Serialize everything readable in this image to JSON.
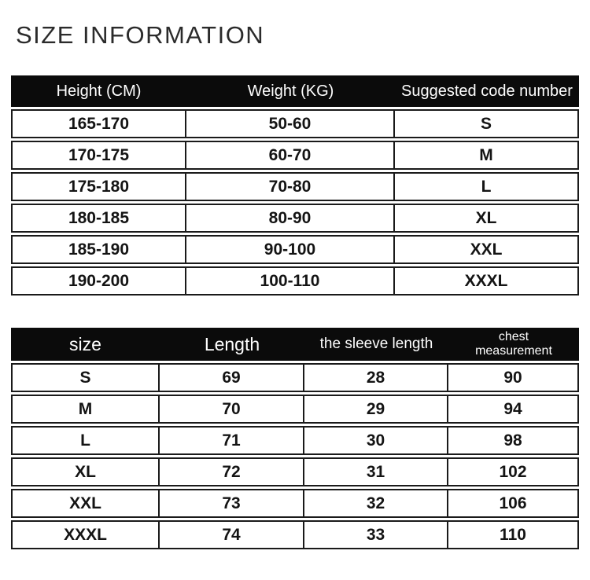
{
  "page_title": "SIZE INFORMATION",
  "colors": {
    "background": "#ffffff",
    "table_header_bg": "#0b0b0b",
    "table_header_text": "#ffffff",
    "table_border": "#1a1a1a",
    "body_text": "#141414",
    "title_text": "#2b2b2b"
  },
  "chart_data": [
    {
      "type": "table",
      "title": "SIZE INFORMATION",
      "columns": [
        "Height (CM)",
        "Weight (KG)",
        "Suggested code number"
      ],
      "rows": [
        [
          "165-170",
          "50-60",
          "S"
        ],
        [
          "170-175",
          "60-70",
          "M"
        ],
        [
          "175-180",
          "70-80",
          "L"
        ],
        [
          "180-185",
          "80-90",
          "XL"
        ],
        [
          "185-190",
          "90-100",
          "XXL"
        ],
        [
          "190-200",
          "100-110",
          "XXXL"
        ]
      ]
    },
    {
      "type": "table",
      "columns": [
        "size",
        "Length",
        "the sleeve length",
        "chest measurement"
      ],
      "rows": [
        [
          "S",
          69,
          28,
          90
        ],
        [
          "M",
          70,
          29,
          94
        ],
        [
          "L",
          71,
          30,
          98
        ],
        [
          "XL",
          72,
          31,
          102
        ],
        [
          "XXL",
          73,
          32,
          106
        ],
        [
          "XXXL",
          74,
          33,
          110
        ]
      ]
    }
  ]
}
